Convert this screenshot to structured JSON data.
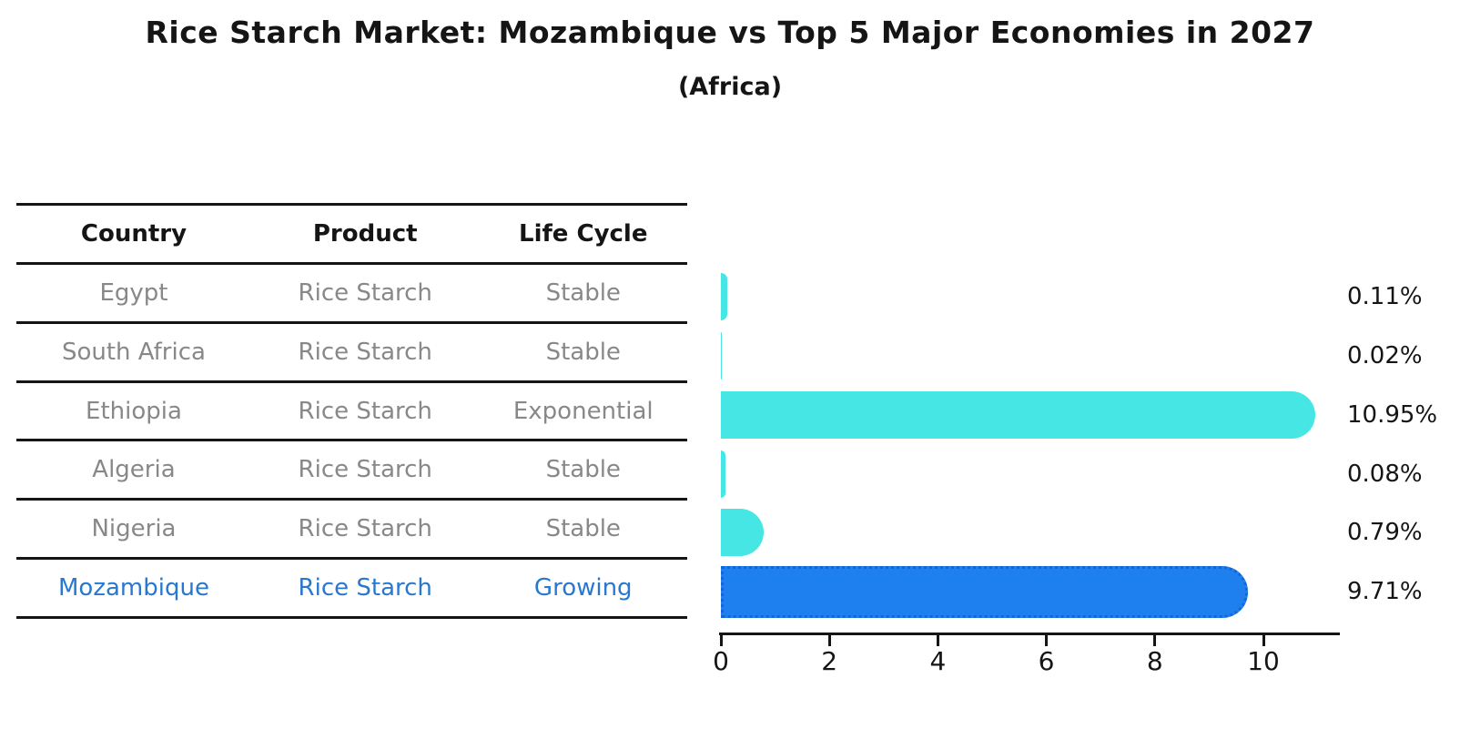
{
  "title": "Rice Starch Market: Mozambique vs Top 5 Major Economies in 2027",
  "subtitle": "(Africa)",
  "table": {
    "headers": [
      "Country",
      "Product",
      "Life Cycle"
    ],
    "rows": [
      {
        "country": "Egypt",
        "product": "Rice Starch",
        "life_cycle": "Stable",
        "highlight": false
      },
      {
        "country": "South Africa",
        "product": "Rice Starch",
        "life_cycle": "Stable",
        "highlight": false
      },
      {
        "country": "Ethiopia",
        "product": "Rice Starch",
        "life_cycle": "Exponential",
        "highlight": false
      },
      {
        "country": "Algeria",
        "product": "Rice Starch",
        "life_cycle": "Stable",
        "highlight": false
      },
      {
        "country": "Nigeria",
        "product": "Rice Starch",
        "life_cycle": "Stable",
        "highlight": false
      },
      {
        "country": "Mozambique",
        "product": "Rice Starch",
        "life_cycle": "Growing",
        "highlight": true
      }
    ]
  },
  "chart_data": {
    "type": "bar",
    "orientation": "horizontal",
    "categories": [
      "Egypt",
      "South Africa",
      "Ethiopia",
      "Algeria",
      "Nigeria",
      "Mozambique"
    ],
    "values": [
      0.11,
      0.02,
      10.95,
      0.08,
      0.79,
      9.71
    ],
    "labels": [
      "0.11%",
      "0.02%",
      "10.95%",
      "0.08%",
      "0.79%",
      "9.71%"
    ],
    "highlight_index": 5,
    "x_ticks": [
      0,
      2,
      4,
      6,
      8,
      10
    ],
    "xlim": [
      0,
      11.4
    ],
    "grid": false,
    "legend": "none",
    "value_unit": "%"
  },
  "colors": {
    "bar_default": "#45E6E3",
    "bar_highlight": "#1E80EE",
    "bar_highlight_edge": "#1565D8",
    "highlight_text": "#2878CF",
    "row_text": "#888888",
    "ink": "#151515"
  }
}
